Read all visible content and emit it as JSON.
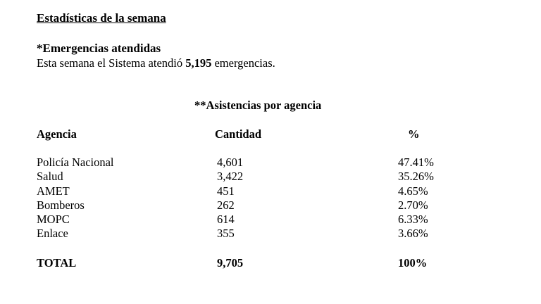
{
  "title": "Estadísticas de la semana",
  "emergencias": {
    "heading": "*Emergencias atendidas",
    "text_before": "Esta semana el Sistema atendió ",
    "count": "5,195",
    "text_after": " emergencias."
  },
  "asistencias": {
    "heading": "**Asistencias por agencia",
    "columns": {
      "agencia": "Agencia",
      "cantidad": "Cantidad",
      "porcentaje": "%"
    },
    "rows": [
      {
        "agencia": "Policía Nacional",
        "cantidad": "4,601",
        "porcentaje": "47.41%"
      },
      {
        "agencia": "Salud",
        "cantidad": "3,422",
        "porcentaje": "35.26%"
      },
      {
        "agencia": "AMET",
        "cantidad": "451",
        "porcentaje": "4.65%"
      },
      {
        "agencia": "Bomberos",
        "cantidad": "262",
        "porcentaje": "2.70%"
      },
      {
        "agencia": "MOPC",
        "cantidad": "614",
        "porcentaje": "6.33%"
      },
      {
        "agencia": "Enlace",
        "cantidad": "355",
        "porcentaje": "3.66%"
      }
    ],
    "total": {
      "label": "TOTAL",
      "cantidad": "9,705",
      "porcentaje": "100%"
    }
  }
}
